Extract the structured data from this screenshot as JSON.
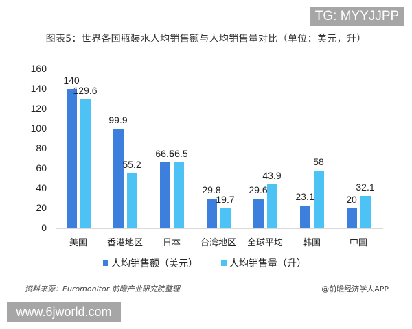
{
  "badges": {
    "top_right": "TG: MYYJJPP",
    "bottom_left": "www.6jworld.com"
  },
  "header": {
    "title": "图表5：世界各国瓶装水人均销售额与人均销售量对比（单位：美元，升）"
  },
  "footer": {
    "source": "资料来源：Euromonitor 前瞻产业研究院整理",
    "credit": "@前瞻经济学人APP"
  },
  "colors": {
    "series1": "#3d7fdc",
    "series2": "#4dc3f5"
  },
  "chart_data": {
    "type": "bar",
    "title": "图表5：世界各国瓶装水人均销售额与人均销售量对比（单位：美元，升）",
    "xlabel": "",
    "ylabel": "",
    "ylim": [
      0,
      160
    ],
    "yticks": [
      0,
      20,
      40,
      60,
      80,
      100,
      120,
      140,
      160
    ],
    "grid": false,
    "legend_position": "bottom",
    "categories": [
      "美国",
      "香港地区",
      "日本",
      "台湾地区",
      "全球平均",
      "韩国",
      "中国"
    ],
    "series": [
      {
        "name": "人均销售额（美元）",
        "values": [
          140,
          99.9,
          66.5,
          29.8,
          29.6,
          23.1,
          20
        ]
      },
      {
        "name": "人均销售量（升）",
        "values": [
          129.6,
          55.2,
          66.5,
          19.7,
          43.9,
          58,
          32.1
        ]
      }
    ]
  }
}
